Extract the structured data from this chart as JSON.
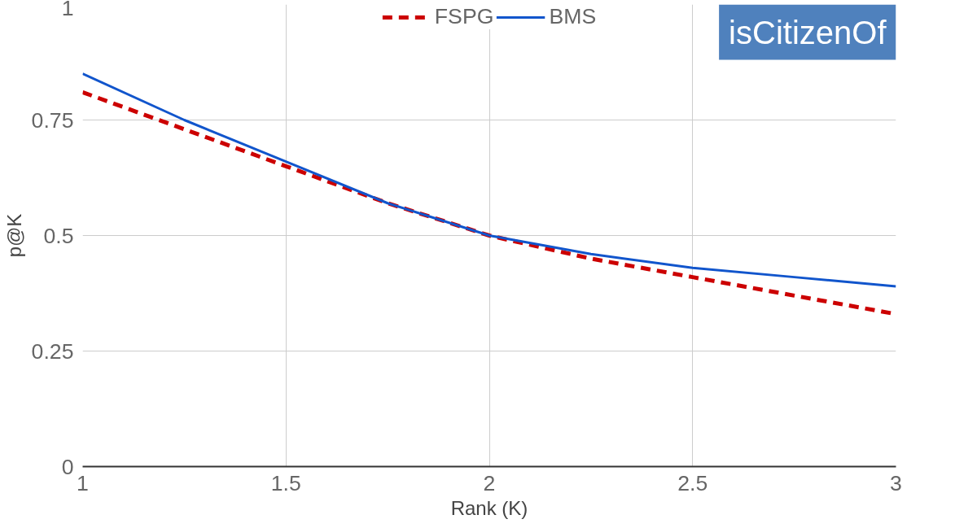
{
  "chart_data": {
    "type": "line",
    "xlabel": "Rank (K)",
    "ylabel": "p@K",
    "annotations": [
      "isCitizenOf"
    ],
    "x": [
      1,
      1.25,
      1.5,
      1.75,
      2,
      2.25,
      2.5,
      2.75,
      3
    ],
    "series": [
      {
        "name": "FSPG",
        "color": "#cc0000",
        "line_style": "dashed",
        "values": [
          0.81,
          0.73,
          0.65,
          0.57,
          0.5,
          0.45,
          0.41,
          0.37,
          0.33
        ]
      },
      {
        "name": "BMS",
        "color": "#1155cc",
        "line_style": "solid",
        "values": [
          0.85,
          0.75,
          0.66,
          0.57,
          0.5,
          0.46,
          0.43,
          0.41,
          0.39
        ]
      }
    ],
    "xlim": [
      1,
      3
    ],
    "xticks": [
      1,
      1.5,
      2,
      2.5,
      3
    ],
    "ylim": [
      0,
      1
    ],
    "yticks": [
      0,
      0.25,
      0.5,
      0.75,
      1
    ],
    "grid": true,
    "legend": "top",
    "marker": "none"
  }
}
